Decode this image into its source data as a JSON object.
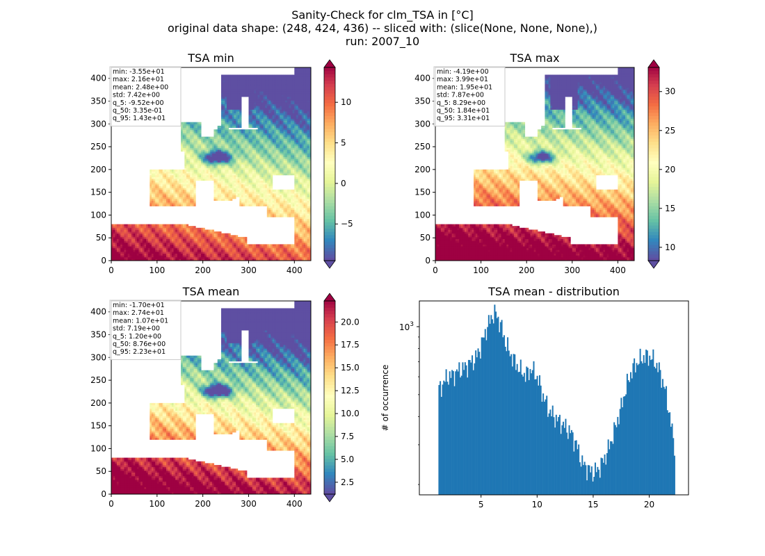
{
  "suptitle": {
    "line1": "Sanity-Check for clm_TSA in [°C]",
    "line2": "original data shape: (248, 424, 436) -- sliced with: (slice(None, None, None),)",
    "line3": "run: 2007_10"
  },
  "chart_data": [
    {
      "type": "heatmap",
      "title": "TSA min",
      "xlim": [
        0,
        436
      ],
      "ylim": [
        0,
        424
      ],
      "xticks": [
        0,
        100,
        200,
        300,
        400
      ],
      "yticks": [
        0,
        50,
        100,
        150,
        200,
        250,
        300,
        350,
        400
      ],
      "colormap": "Spectral_r",
      "colorbar": {
        "range": [
          -9.52,
          14.3
        ],
        "ticks": [
          -5,
          0,
          5,
          10
        ],
        "extend": "both"
      },
      "stats": [
        "min: -3.55e+01",
        "max: 2.16e+01",
        "mean: 2.48e+00",
        "std: 7.42e+00",
        "q_5: -9.52e+00",
        "q_50: 3.35e-01",
        "q_95: 1.43e+01"
      ]
    },
    {
      "type": "heatmap",
      "title": "TSA max",
      "xlim": [
        0,
        436
      ],
      "ylim": [
        0,
        424
      ],
      "xticks": [
        0,
        100,
        200,
        300,
        400
      ],
      "yticks": [
        0,
        50,
        100,
        150,
        200,
        250,
        300,
        350,
        400
      ],
      "colormap": "Spectral_r",
      "colorbar": {
        "range": [
          8.29,
          33.1
        ],
        "ticks": [
          10,
          15,
          20,
          25,
          30
        ],
        "extend": "both"
      },
      "stats": [
        "min: -4.19e+00",
        "max: 3.99e+01",
        "mean: 1.95e+01",
        "std: 7.87e+00",
        "q_5: 8.29e+00",
        "q_50: 1.84e+01",
        "q_95: 3.31e+01"
      ]
    },
    {
      "type": "heatmap",
      "title": "TSA mean",
      "xlim": [
        0,
        436
      ],
      "ylim": [
        0,
        424
      ],
      "xticks": [
        0,
        100,
        200,
        300,
        400
      ],
      "yticks": [
        0,
        50,
        100,
        150,
        200,
        250,
        300,
        350,
        400
      ],
      "colormap": "Spectral_r",
      "colorbar": {
        "range": [
          1.2,
          22.3
        ],
        "ticks": [
          2.5,
          5.0,
          7.5,
          10.0,
          12.5,
          15.0,
          17.5,
          20.0
        ],
        "extend": "both"
      },
      "stats": [
        "min: -1.70e+01",
        "max: 2.74e+01",
        "mean: 1.07e+01",
        "std: 7.19e+00",
        "q_5: 1.20e+00",
        "q_50: 8.76e+00",
        "q_95: 2.23e+01"
      ]
    },
    {
      "type": "bar",
      "title": "TSA mean - distribution",
      "ylabel": "# of occurrence",
      "yscale": "log",
      "xlim": [
        -0.5,
        23.5
      ],
      "ylim": [
        180,
        1300
      ],
      "xticks": [
        5,
        10,
        15,
        20
      ],
      "ytick_labels": [
        {
          "value": 1000,
          "base": "10",
          "exp": "3"
        }
      ],
      "color": "#1f77b4",
      "bin_range": [
        1.2,
        22.3
      ],
      "profile": [
        [
          1.2,
          520
        ],
        [
          1.6,
          560
        ],
        [
          2.0,
          600
        ],
        [
          2.5,
          610
        ],
        [
          3.0,
          640
        ],
        [
          3.5,
          655
        ],
        [
          4.0,
          690
        ],
        [
          4.5,
          720
        ],
        [
          5.0,
          820
        ],
        [
          5.5,
          980
        ],
        [
          6.0,
          1120
        ],
        [
          6.3,
          1150
        ],
        [
          6.8,
          1000
        ],
        [
          7.2,
          840
        ],
        [
          7.6,
          760
        ],
        [
          8.0,
          700
        ],
        [
          8.5,
          640
        ],
        [
          9.0,
          610
        ],
        [
          9.5,
          650
        ],
        [
          10.0,
          600
        ],
        [
          10.5,
          500
        ],
        [
          11.0,
          430
        ],
        [
          11.5,
          400
        ],
        [
          12.0,
          380
        ],
        [
          12.5,
          360
        ],
        [
          13.0,
          340
        ],
        [
          13.5,
          300
        ],
        [
          14.0,
          250
        ],
        [
          14.5,
          235
        ],
        [
          15.0,
          225
        ],
        [
          15.5,
          235
        ],
        [
          16.0,
          260
        ],
        [
          16.5,
          300
        ],
        [
          17.0,
          360
        ],
        [
          17.5,
          440
        ],
        [
          18.0,
          550
        ],
        [
          18.5,
          650
        ],
        [
          19.0,
          700
        ],
        [
          19.5,
          735
        ],
        [
          20.0,
          740
        ],
        [
          20.5,
          700
        ],
        [
          21.0,
          620
        ],
        [
          21.5,
          500
        ],
        [
          22.0,
          350
        ],
        [
          22.3,
          290
        ]
      ]
    }
  ]
}
